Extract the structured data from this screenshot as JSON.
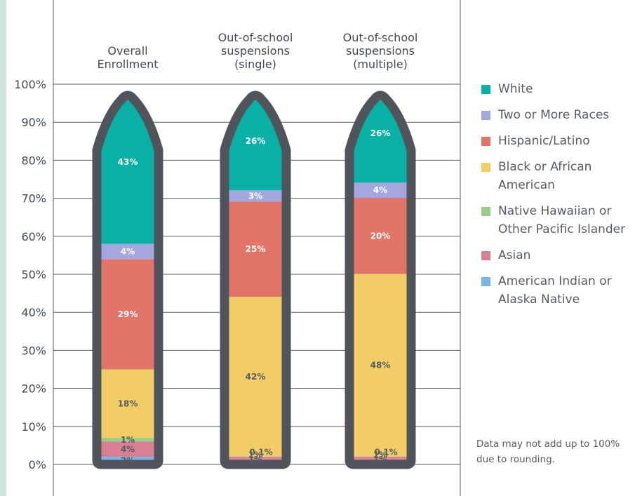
{
  "chart_data": {
    "type": "bar",
    "stacked": true,
    "ylim": [
      0,
      100
    ],
    "yticks": [
      "0%",
      "10%",
      "20%",
      "30%",
      "40%",
      "50%",
      "60%",
      "70%",
      "80%",
      "90%",
      "100%"
    ],
    "grid": true,
    "legend_position": "right",
    "categories": [
      "Overall\nEnrollment",
      "Out-of-school\nsuspensions\n(single)",
      "Out-of-school\nsuspensions\n(multiple)"
    ],
    "series": [
      {
        "name": "American Indian or Alaska Native",
        "color": "#7cb3e8",
        "values": [
          2,
          1,
          1
        ],
        "labels": [
          "2%",
          "1%",
          "1%"
        ]
      },
      {
        "name": "Asian",
        "color": "#d97f92",
        "values": [
          4,
          1,
          1
        ],
        "labels": [
          "4%",
          "1%",
          "1%"
        ]
      },
      {
        "name": "Native Hawaiian or Other Pacific Islander",
        "color": "#97cf8a",
        "values": [
          1,
          0.1,
          0.1
        ],
        "labels": [
          "1%",
          "0.1%",
          "0.1%"
        ]
      },
      {
        "name": "Black or African American",
        "color": "#f2cd66",
        "values": [
          18,
          42,
          48
        ],
        "labels": [
          "18%",
          "42%",
          "48%"
        ]
      },
      {
        "name": "Hispanic/Latino",
        "color": "#e3746a",
        "values": [
          29,
          25,
          20
        ],
        "labels": [
          "29%",
          "25%",
          "20%"
        ]
      },
      {
        "name": "Two or More Races",
        "color": "#a4a6de",
        "values": [
          4,
          3,
          4
        ],
        "labels": [
          "4%",
          "3%",
          "4%"
        ]
      },
      {
        "name": "White",
        "color": "#08b0a6",
        "values": [
          43,
          26,
          26
        ],
        "labels": [
          "43%",
          "26%",
          "26%"
        ]
      }
    ]
  },
  "legend": [
    {
      "label": "White",
      "color": "#08b0a6"
    },
    {
      "label": "Two or More Races",
      "color": "#a4a6de"
    },
    {
      "label": "Hispanic/Latino",
      "color": "#e3746a"
    },
    {
      "label": "Black or African American",
      "color": "#f2cd66"
    },
    {
      "label": "Native Hawaiian or Other Pacific Islander",
      "color": "#97cf8a"
    },
    {
      "label": "Asian",
      "color": "#d97f92"
    },
    {
      "label": "American Indian or Alaska Native",
      "color": "#7cb3e8"
    }
  ],
  "note": "Data may not add up to 100% due to rounding.",
  "colors": {
    "pencil_outline": "#4f555a",
    "grid": "#555d63",
    "side_strip": "#cfe3e1"
  }
}
